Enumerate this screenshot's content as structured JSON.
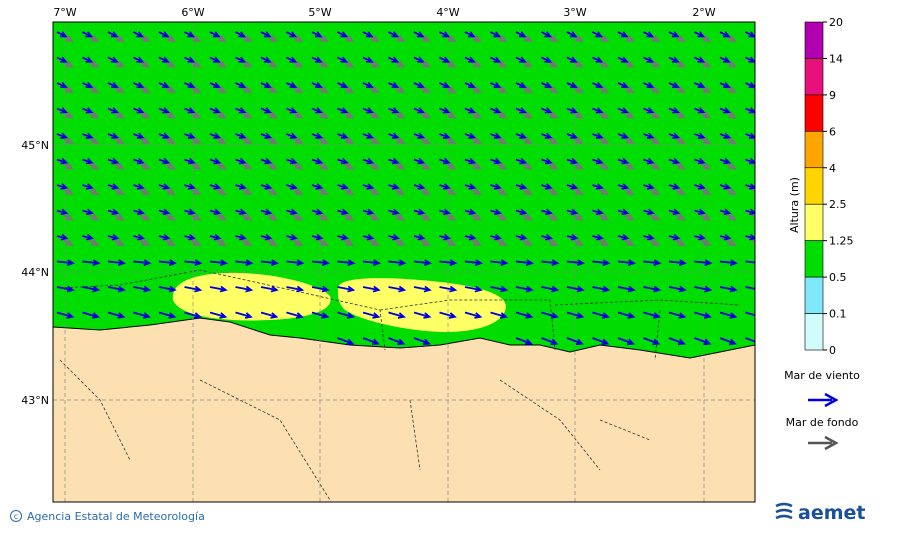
{
  "map": {
    "lon_labels": [
      "7°W",
      "6°W",
      "5°W",
      "4°W",
      "3°W",
      "2°W"
    ],
    "lat_labels": [
      "45°N",
      "44°N",
      "43°N"
    ]
  },
  "colorbar": {
    "title": "Altura (m)",
    "ticks": [
      20,
      14,
      9,
      6,
      4,
      2.5,
      1.25,
      0.5,
      0.1,
      0
    ],
    "colors": [
      "#b000b0",
      "#e8107a",
      "#ff0000",
      "#ffa500",
      "#ffd500",
      "#ffff66",
      "#00dd00",
      "#80e8f8",
      "#d0fcfc"
    ]
  },
  "legend": {
    "wind_sea": "Mar de viento",
    "swell": "Mar de fondo"
  },
  "footer": {
    "credit": "Agencia Estatal de Meteorología",
    "logo": "aemet"
  }
}
